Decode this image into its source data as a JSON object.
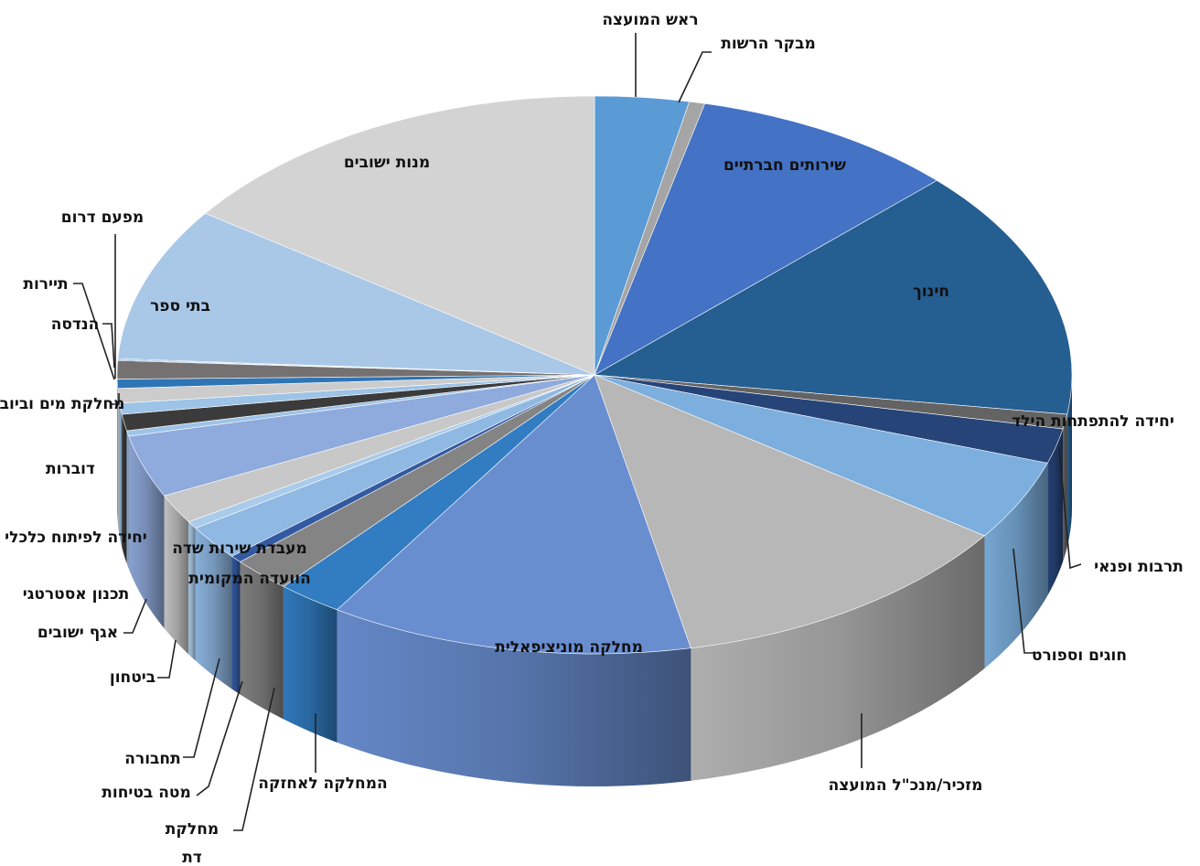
{
  "chart_data": {
    "type": "pie",
    "style": "3d",
    "legend": "none",
    "series": [
      {
        "values": [
          {
            "label": "ראש המועצה",
            "value": 3.0,
            "color": "#5b9bd5"
          },
          {
            "label": "מבקר הרשות",
            "value": 0.5,
            "color": "#a5a5a5"
          },
          {
            "label": "שירותים חברתיים",
            "value": 8.5,
            "color": "#4472c4"
          },
          {
            "label": "חינוך",
            "value": 13.7,
            "color": "#255e91"
          },
          {
            "label": "יחידה להתפתחות הילד",
            "value": 0.8,
            "color": "#636363"
          },
          {
            "label": "תרבות ופנאי",
            "value": 1.9,
            "color": "#264478"
          },
          {
            "label": "חוגים וספורט",
            "value": 4.4,
            "color": "#7cafdd"
          },
          {
            "label": "מזכיר/מנכ\"ל המועצה",
            "value": 11.3,
            "color": "#b7b7b7"
          },
          {
            "label": "מחלקה מוניציפאלית",
            "value": 11.6,
            "color": "#698ed0"
          },
          {
            "label": "המחלקה לאחזקה",
            "value": 2.1,
            "color": "#327dc2"
          },
          {
            "label": "מחלקת דת",
            "value": 1.9,
            "color": "#848484"
          },
          {
            "label": "מטה בטיחות",
            "value": 0.4,
            "color": "#335aa1"
          },
          {
            "label": "הוועדה המקומית",
            "value": 1.9,
            "color": "#8fb8e3"
          },
          {
            "label": "מעבדת שירות שדה",
            "value": 0.4,
            "color": "#aacbea"
          },
          {
            "label": "תחבורה",
            "value": 1.6,
            "color": "#c8c8c8"
          },
          {
            "label": "ביטחון",
            "value": 3.4,
            "color": "#8faadc"
          },
          {
            "label": "אגף ישובים",
            "value": 0.3,
            "color": "#9dc3e6"
          },
          {
            "label": "תכנון אסטרטגי",
            "value": 0.9,
            "color": "#3b3b3b"
          },
          {
            "label": "יחידה לפיתוח כלכלי",
            "value": 0.6,
            "color": "#9dc3e6"
          },
          {
            "label": "דוברות",
            "value": 0.8,
            "color": "#cccccc"
          },
          {
            "label": "מחלקת מים וביוב",
            "value": 0.5,
            "color": "#2e75b6"
          },
          {
            "label": "הנדסה",
            "value": 1.0,
            "color": "#767171"
          },
          {
            "label": "תיירות",
            "value": 0.05,
            "color": "#5b9bd5"
          },
          {
            "label": "מפעם דרום",
            "value": 0.05,
            "color": "#4472c4"
          },
          {
            "label": "בתי ספר",
            "value": 8.4,
            "color": "#a9c8e8"
          },
          {
            "label": "מנות ישובים",
            "value": 14.3,
            "color": "#d3d3d3"
          }
        ]
      }
    ],
    "labels": [
      {
        "text": "ראש המועצה"
      },
      {
        "text": "מבקר הרשות"
      },
      {
        "text": "שירותים חברתיים"
      },
      {
        "text": "חינוך"
      },
      {
        "text": "יחידה להתפתחות הילד"
      },
      {
        "text": "תרבות ופנאי"
      },
      {
        "text": "חוגים וספורט"
      },
      {
        "text": "מזכיר/מנכ\"ל המועצה"
      },
      {
        "text": "מחלקה מוניציפאלית"
      },
      {
        "text": "המחלקה לאחזקה"
      },
      {
        "text": "מחלקת"
      },
      {
        "text": "דת"
      },
      {
        "text": "מטה בטיחות"
      },
      {
        "text": "הוועדה המקומית"
      },
      {
        "text": "מעבדת שירות שדה"
      },
      {
        "text": "תחבורה"
      },
      {
        "text": "ביטחון"
      },
      {
        "text": "אגף ישובים"
      },
      {
        "text": "תכנון אסטרטגי"
      },
      {
        "text": "יחידה לפיתוח כלכלי"
      },
      {
        "text": "דוברות"
      },
      {
        "text": "מחלקת מים וביוב"
      },
      {
        "text": "הנדסה"
      },
      {
        "text": "תיירות"
      },
      {
        "text": "מפעם דרום"
      },
      {
        "text": "בתי ספר"
      },
      {
        "text": "מנות ישובים"
      }
    ]
  }
}
